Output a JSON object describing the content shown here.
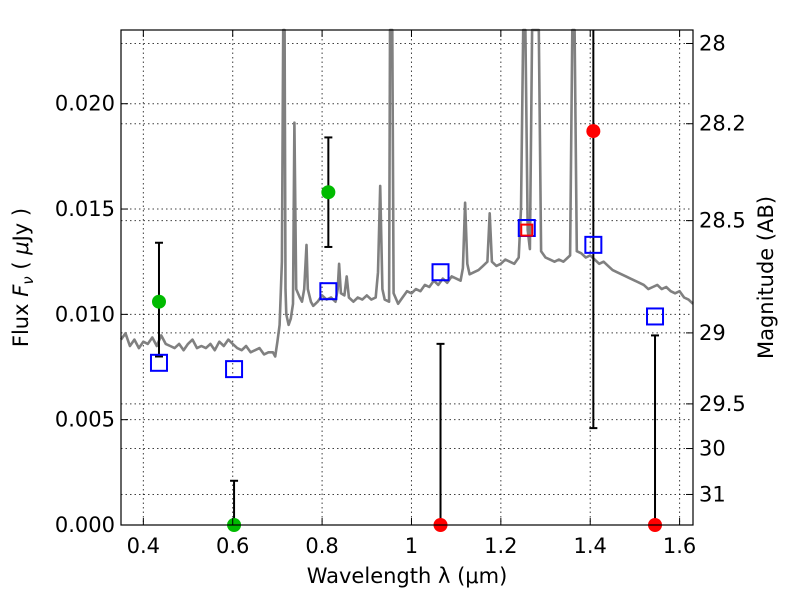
{
  "chart_data": {
    "type": "scatter",
    "xlabel": "Wavelength  λ (μm)",
    "ylabel_parts": {
      "prefix": "Flux  ",
      "symbol": "F",
      "subscript": "ν",
      "unit_open": "  ( ",
      "unit_mu": "μ",
      "unit_rest": "Jy )"
    },
    "y2label": "Magnitude (AB)",
    "xlim": [
      0.35,
      1.63
    ],
    "ylim": [
      0.0,
      0.0235
    ],
    "grid": true,
    "x_ticks": [
      {
        "value": 0.4,
        "label": "0.4"
      },
      {
        "value": 0.6,
        "label": "0.6"
      },
      {
        "value": 0.8,
        "label": "0.8"
      },
      {
        "value": 1.0,
        "label": "1"
      },
      {
        "value": 1.2,
        "label": "1.2"
      },
      {
        "value": 1.4,
        "label": "1.4"
      },
      {
        "value": 1.6,
        "label": "1.6"
      }
    ],
    "y_ticks": [
      {
        "value": 0.0,
        "label": "0.000"
      },
      {
        "value": 0.005,
        "label": "0.005"
      },
      {
        "value": 0.01,
        "label": "0.010"
      },
      {
        "value": 0.015,
        "label": "0.015"
      },
      {
        "value": 0.02,
        "label": "0.020"
      }
    ],
    "y2_ticks": [
      {
        "flux": 0.02286,
        "label": "28"
      },
      {
        "flux": 0.01905,
        "label": "28.2"
      },
      {
        "flux": 0.01445,
        "label": "28.5"
      },
      {
        "flux": 0.00912,
        "label": "29"
      },
      {
        "flux": 0.00575,
        "label": "29.5"
      },
      {
        "flux": 0.00363,
        "label": "30"
      },
      {
        "flux": 0.00145,
        "label": "31"
      }
    ],
    "sed_model": {
      "color": "#808080",
      "points": [
        [
          0.35,
          0.0088
        ],
        [
          0.36,
          0.0091
        ],
        [
          0.37,
          0.0085
        ],
        [
          0.38,
          0.0088
        ],
        [
          0.39,
          0.0084
        ],
        [
          0.4,
          0.0087
        ],
        [
          0.41,
          0.0086
        ],
        [
          0.42,
          0.0089
        ],
        [
          0.43,
          0.0085
        ],
        [
          0.44,
          0.009
        ],
        [
          0.45,
          0.0086
        ],
        [
          0.46,
          0.0085
        ],
        [
          0.47,
          0.0084
        ],
        [
          0.48,
          0.0086
        ],
        [
          0.49,
          0.0083
        ],
        [
          0.5,
          0.0086
        ],
        [
          0.51,
          0.0088
        ],
        [
          0.52,
          0.0084
        ],
        [
          0.53,
          0.0085
        ],
        [
          0.54,
          0.0084
        ],
        [
          0.55,
          0.0086
        ],
        [
          0.56,
          0.0083
        ],
        [
          0.57,
          0.0087
        ],
        [
          0.58,
          0.0085
        ],
        [
          0.59,
          0.0088
        ],
        [
          0.6,
          0.0086
        ],
        [
          0.61,
          0.0084
        ],
        [
          0.62,
          0.0083
        ],
        [
          0.63,
          0.0085
        ],
        [
          0.64,
          0.0082
        ],
        [
          0.65,
          0.0083
        ],
        [
          0.66,
          0.0084
        ],
        [
          0.67,
          0.0081
        ],
        [
          0.68,
          0.0082
        ],
        [
          0.69,
          0.0082
        ],
        [
          0.695,
          0.008
        ],
        [
          0.7,
          0.0087
        ],
        [
          0.705,
          0.0095
        ],
        [
          0.71,
          0.0125
        ],
        [
          0.713,
          0.0235
        ],
        [
          0.716,
          0.0235
        ],
        [
          0.718,
          0.0112
        ],
        [
          0.72,
          0.01
        ],
        [
          0.725,
          0.0095
        ],
        [
          0.73,
          0.0098
        ],
        [
          0.735,
          0.0105
        ],
        [
          0.738,
          0.0191
        ],
        [
          0.742,
          0.0112
        ],
        [
          0.75,
          0.0108
        ],
        [
          0.755,
          0.0106
        ],
        [
          0.76,
          0.0112
        ],
        [
          0.765,
          0.0133
        ],
        [
          0.768,
          0.0112
        ],
        [
          0.775,
          0.0106
        ],
        [
          0.78,
          0.0104
        ],
        [
          0.79,
          0.0106
        ],
        [
          0.8,
          0.0109
        ],
        [
          0.81,
          0.0107
        ],
        [
          0.82,
          0.0108
        ],
        [
          0.83,
          0.0106
        ],
        [
          0.835,
          0.0112
        ],
        [
          0.838,
          0.0124
        ],
        [
          0.842,
          0.011
        ],
        [
          0.85,
          0.0109
        ],
        [
          0.855,
          0.0118
        ],
        [
          0.86,
          0.0108
        ],
        [
          0.87,
          0.0106
        ],
        [
          0.88,
          0.0108
        ],
        [
          0.89,
          0.0107
        ],
        [
          0.9,
          0.0109
        ],
        [
          0.91,
          0.0107
        ],
        [
          0.92,
          0.0108
        ],
        [
          0.925,
          0.012
        ],
        [
          0.93,
          0.0161
        ],
        [
          0.935,
          0.0112
        ],
        [
          0.94,
          0.0107
        ],
        [
          0.95,
          0.0106
        ],
        [
          0.952,
          0.0235
        ],
        [
          0.957,
          0.0235
        ],
        [
          0.96,
          0.011
        ],
        [
          0.97,
          0.0105
        ],
        [
          0.98,
          0.0108
        ],
        [
          0.99,
          0.0111
        ],
        [
          1.0,
          0.011
        ],
        [
          1.01,
          0.0112
        ],
        [
          1.02,
          0.0111
        ],
        [
          1.03,
          0.0114
        ],
        [
          1.04,
          0.0113
        ],
        [
          1.05,
          0.0116
        ],
        [
          1.06,
          0.0114
        ],
        [
          1.07,
          0.0117
        ],
        [
          1.08,
          0.0115
        ],
        [
          1.09,
          0.0118
        ],
        [
          1.1,
          0.0117
        ],
        [
          1.11,
          0.0116
        ],
        [
          1.115,
          0.0122
        ],
        [
          1.12,
          0.0153
        ],
        [
          1.125,
          0.0124
        ],
        [
          1.13,
          0.0119
        ],
        [
          1.14,
          0.012
        ],
        [
          1.15,
          0.0121
        ],
        [
          1.16,
          0.0123
        ],
        [
          1.17,
          0.0125
        ],
        [
          1.175,
          0.0148
        ],
        [
          1.18,
          0.0125
        ],
        [
          1.19,
          0.0123
        ],
        [
          1.2,
          0.0124
        ],
        [
          1.21,
          0.0126
        ],
        [
          1.22,
          0.0125
        ],
        [
          1.23,
          0.0124
        ],
        [
          1.24,
          0.0127
        ],
        [
          1.245,
          0.015
        ],
        [
          1.25,
          0.0235
        ],
        [
          1.255,
          0.0235
        ],
        [
          1.26,
          0.014
        ],
        [
          1.265,
          0.0131
        ],
        [
          1.27,
          0.0235
        ],
        [
          1.275,
          0.0235
        ],
        [
          1.28,
          0.0235
        ],
        [
          1.285,
          0.0235
        ],
        [
          1.29,
          0.013
        ],
        [
          1.3,
          0.0127
        ],
        [
          1.31,
          0.0126
        ],
        [
          1.32,
          0.0125
        ],
        [
          1.33,
          0.0126
        ],
        [
          1.34,
          0.0125
        ],
        [
          1.35,
          0.0127
        ],
        [
          1.355,
          0.0128
        ],
        [
          1.36,
          0.0235
        ],
        [
          1.365,
          0.0235
        ],
        [
          1.37,
          0.013
        ],
        [
          1.38,
          0.0129
        ],
        [
          1.39,
          0.0127
        ],
        [
          1.4,
          0.0128
        ],
        [
          1.41,
          0.0126
        ],
        [
          1.42,
          0.0124
        ],
        [
          1.43,
          0.0125
        ],
        [
          1.44,
          0.0123
        ],
        [
          1.45,
          0.0121
        ],
        [
          1.46,
          0.012
        ],
        [
          1.47,
          0.0119
        ],
        [
          1.48,
          0.0118
        ],
        [
          1.49,
          0.0117
        ],
        [
          1.5,
          0.0116
        ],
        [
          1.51,
          0.0115
        ],
        [
          1.52,
          0.0114
        ],
        [
          1.53,
          0.0112
        ],
        [
          1.54,
          0.0113
        ],
        [
          1.55,
          0.0114
        ],
        [
          1.56,
          0.0112
        ],
        [
          1.57,
          0.0113
        ],
        [
          1.58,
          0.0111
        ],
        [
          1.59,
          0.011
        ],
        [
          1.6,
          0.0111
        ],
        [
          1.61,
          0.0108
        ],
        [
          1.62,
          0.0107
        ],
        [
          1.63,
          0.0105
        ]
      ]
    },
    "series": [
      {
        "marker": "circle",
        "color": "#00bb00",
        "points": [
          {
            "x": 0.435,
            "y": 0.0106,
            "err_low": 0.008,
            "err_high": 0.0134
          },
          {
            "x": 0.603,
            "y": 0.0,
            "err_low": 0.0,
            "err_high": 0.0021
          },
          {
            "x": 0.814,
            "y": 0.0158,
            "err_low": 0.0132,
            "err_high": 0.0184
          }
        ]
      },
      {
        "marker": "circle",
        "color": "#ff0000",
        "points": [
          {
            "x": 1.065,
            "y": 0.0,
            "err_low": 0.0,
            "err_high": 0.0086
          },
          {
            "x": 1.407,
            "y": 0.0187,
            "err_low": 0.0046,
            "err_high": 0.0235
          },
          {
            "x": 1.545,
            "y": 0.0,
            "err_low": 0.0,
            "err_high": 0.009
          }
        ]
      },
      {
        "marker": "square-open",
        "color": "#0000ff",
        "points": [
          {
            "x": 0.435,
            "y": 0.0077
          },
          {
            "x": 0.603,
            "y": 0.0074
          },
          {
            "x": 0.814,
            "y": 0.0111
          },
          {
            "x": 1.065,
            "y": 0.012
          },
          {
            "x": 1.258,
            "y": 0.0141
          },
          {
            "x": 1.407,
            "y": 0.0133
          },
          {
            "x": 1.545,
            "y": 0.0099
          }
        ]
      },
      {
        "marker": "square-open",
        "color": "#ff0000",
        "points": [
          {
            "x": 1.258,
            "y": 0.014
          }
        ]
      }
    ]
  }
}
